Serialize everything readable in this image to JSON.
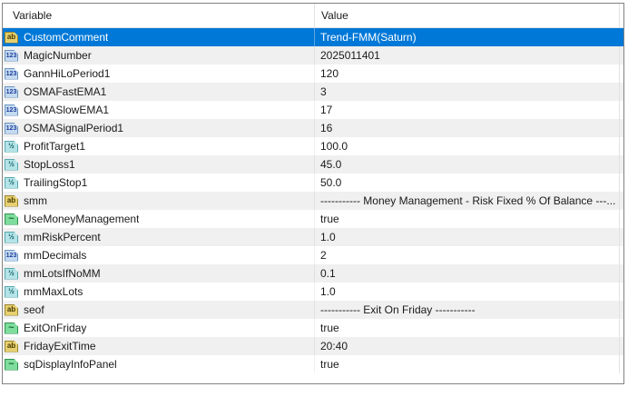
{
  "table": {
    "columns": [
      {
        "label": "Variable"
      },
      {
        "label": "Value"
      }
    ],
    "selection_color": "#0078d7",
    "alt_row_color": "#f0f0f0",
    "icons": {
      "string": {
        "glyph": "ab"
      },
      "int": {
        "glyph": "123"
      },
      "double": {
        "glyph": "½"
      },
      "bool": {
        "glyph": "~"
      }
    },
    "rows": [
      {
        "variable": "CustomComment",
        "value": "Trend-FMM(Saturn)",
        "type": "string",
        "selected": true
      },
      {
        "variable": "MagicNumber",
        "value": "2025011401",
        "type": "int"
      },
      {
        "variable": "GannHiLoPeriod1",
        "value": "120",
        "type": "int"
      },
      {
        "variable": "OSMAFastEMA1",
        "value": "3",
        "type": "int"
      },
      {
        "variable": "OSMASlowEMA1",
        "value": "17",
        "type": "int"
      },
      {
        "variable": "OSMASignalPeriod1",
        "value": "16",
        "type": "int"
      },
      {
        "variable": "ProfitTarget1",
        "value": "100.0",
        "type": "double"
      },
      {
        "variable": "StopLoss1",
        "value": "45.0",
        "type": "double"
      },
      {
        "variable": "TrailingStop1",
        "value": "50.0",
        "type": "double"
      },
      {
        "variable": "smm",
        "value": "----------- Money Management - Risk Fixed % Of Balance ---...",
        "type": "string"
      },
      {
        "variable": "UseMoneyManagement",
        "value": "true",
        "type": "bool"
      },
      {
        "variable": "mmRiskPercent",
        "value": "1.0",
        "type": "double"
      },
      {
        "variable": "mmDecimals",
        "value": "2",
        "type": "int"
      },
      {
        "variable": "mmLotsIfNoMM",
        "value": "0.1",
        "type": "double"
      },
      {
        "variable": "mmMaxLots",
        "value": "1.0",
        "type": "double"
      },
      {
        "variable": "seof",
        "value": "----------- Exit On Friday -----------",
        "type": "string"
      },
      {
        "variable": "ExitOnFriday",
        "value": "true",
        "type": "bool"
      },
      {
        "variable": "FridayExitTime",
        "value": "20:40",
        "type": "string"
      },
      {
        "variable": "sqDisplayInfoPanel",
        "value": "true",
        "type": "bool"
      }
    ]
  }
}
